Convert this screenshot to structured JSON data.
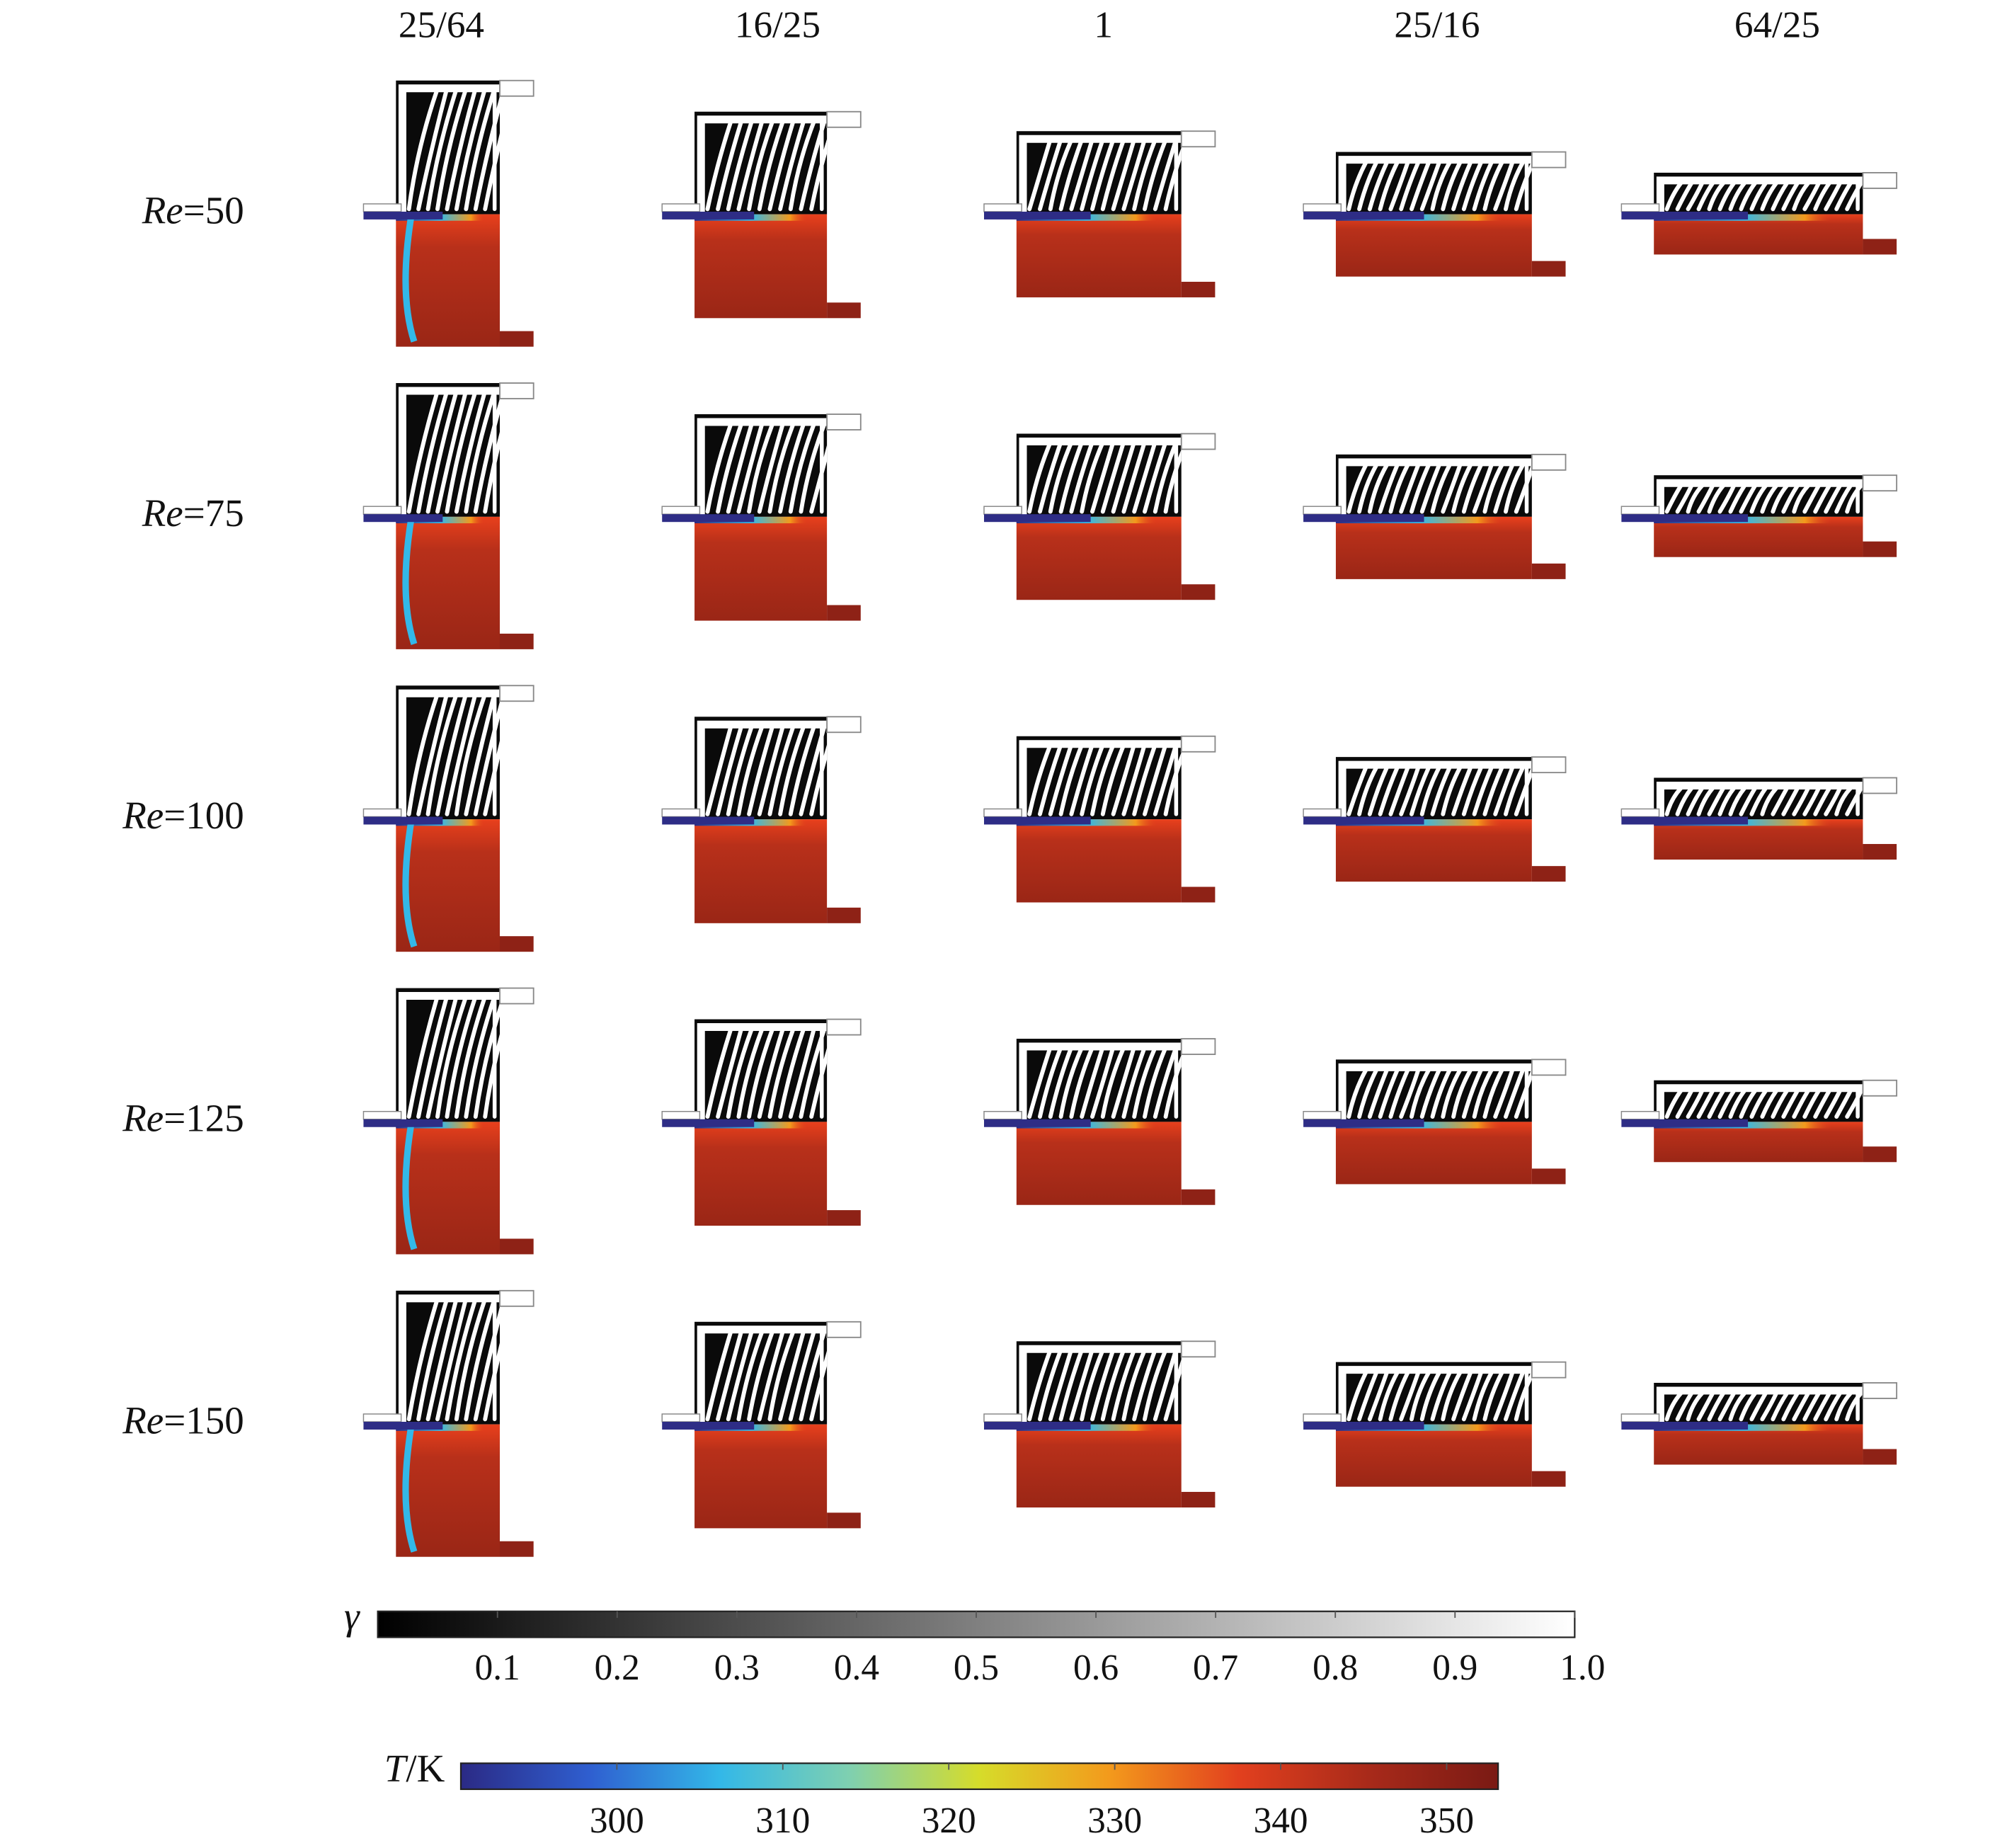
{
  "column_labels": [
    "25/64",
    "16/25",
    "1",
    "25/16",
    "64/25"
  ],
  "row_labels": [
    {
      "symbol": "Re",
      "text": "=50"
    },
    {
      "symbol": "Re",
      "text": "=75"
    },
    {
      "symbol": "Re",
      "text": "=100"
    },
    {
      "symbol": "Re",
      "text": "=125"
    },
    {
      "symbol": "Re",
      "text": "=150"
    }
  ],
  "colorbars": [
    {
      "symbol": "γ",
      "lim": [
        0,
        1
      ],
      "ticks": [
        0.1,
        0.2,
        0.3,
        0.4,
        0.5,
        0.6,
        0.7,
        0.8,
        0.9,
        {
          "value": 1,
          "label": "1.0"
        }
      ],
      "colors": [
        "#000000",
        "#ffffff"
      ]
    },
    {
      "symbol": "T",
      "unit": "/K",
      "lim": [
        290.6,
        353.1
      ],
      "ticks": [
        300,
        310,
        320,
        330,
        340,
        350
      ],
      "colors": [
        "#2b2a85",
        "#2f5fd0",
        "#33b8e8",
        "#7fd0b0",
        "#d6dc2a",
        "#f39a1c",
        "#e2401e",
        "#a82a1a",
        "#7a1a14"
      ]
    }
  ]
}
